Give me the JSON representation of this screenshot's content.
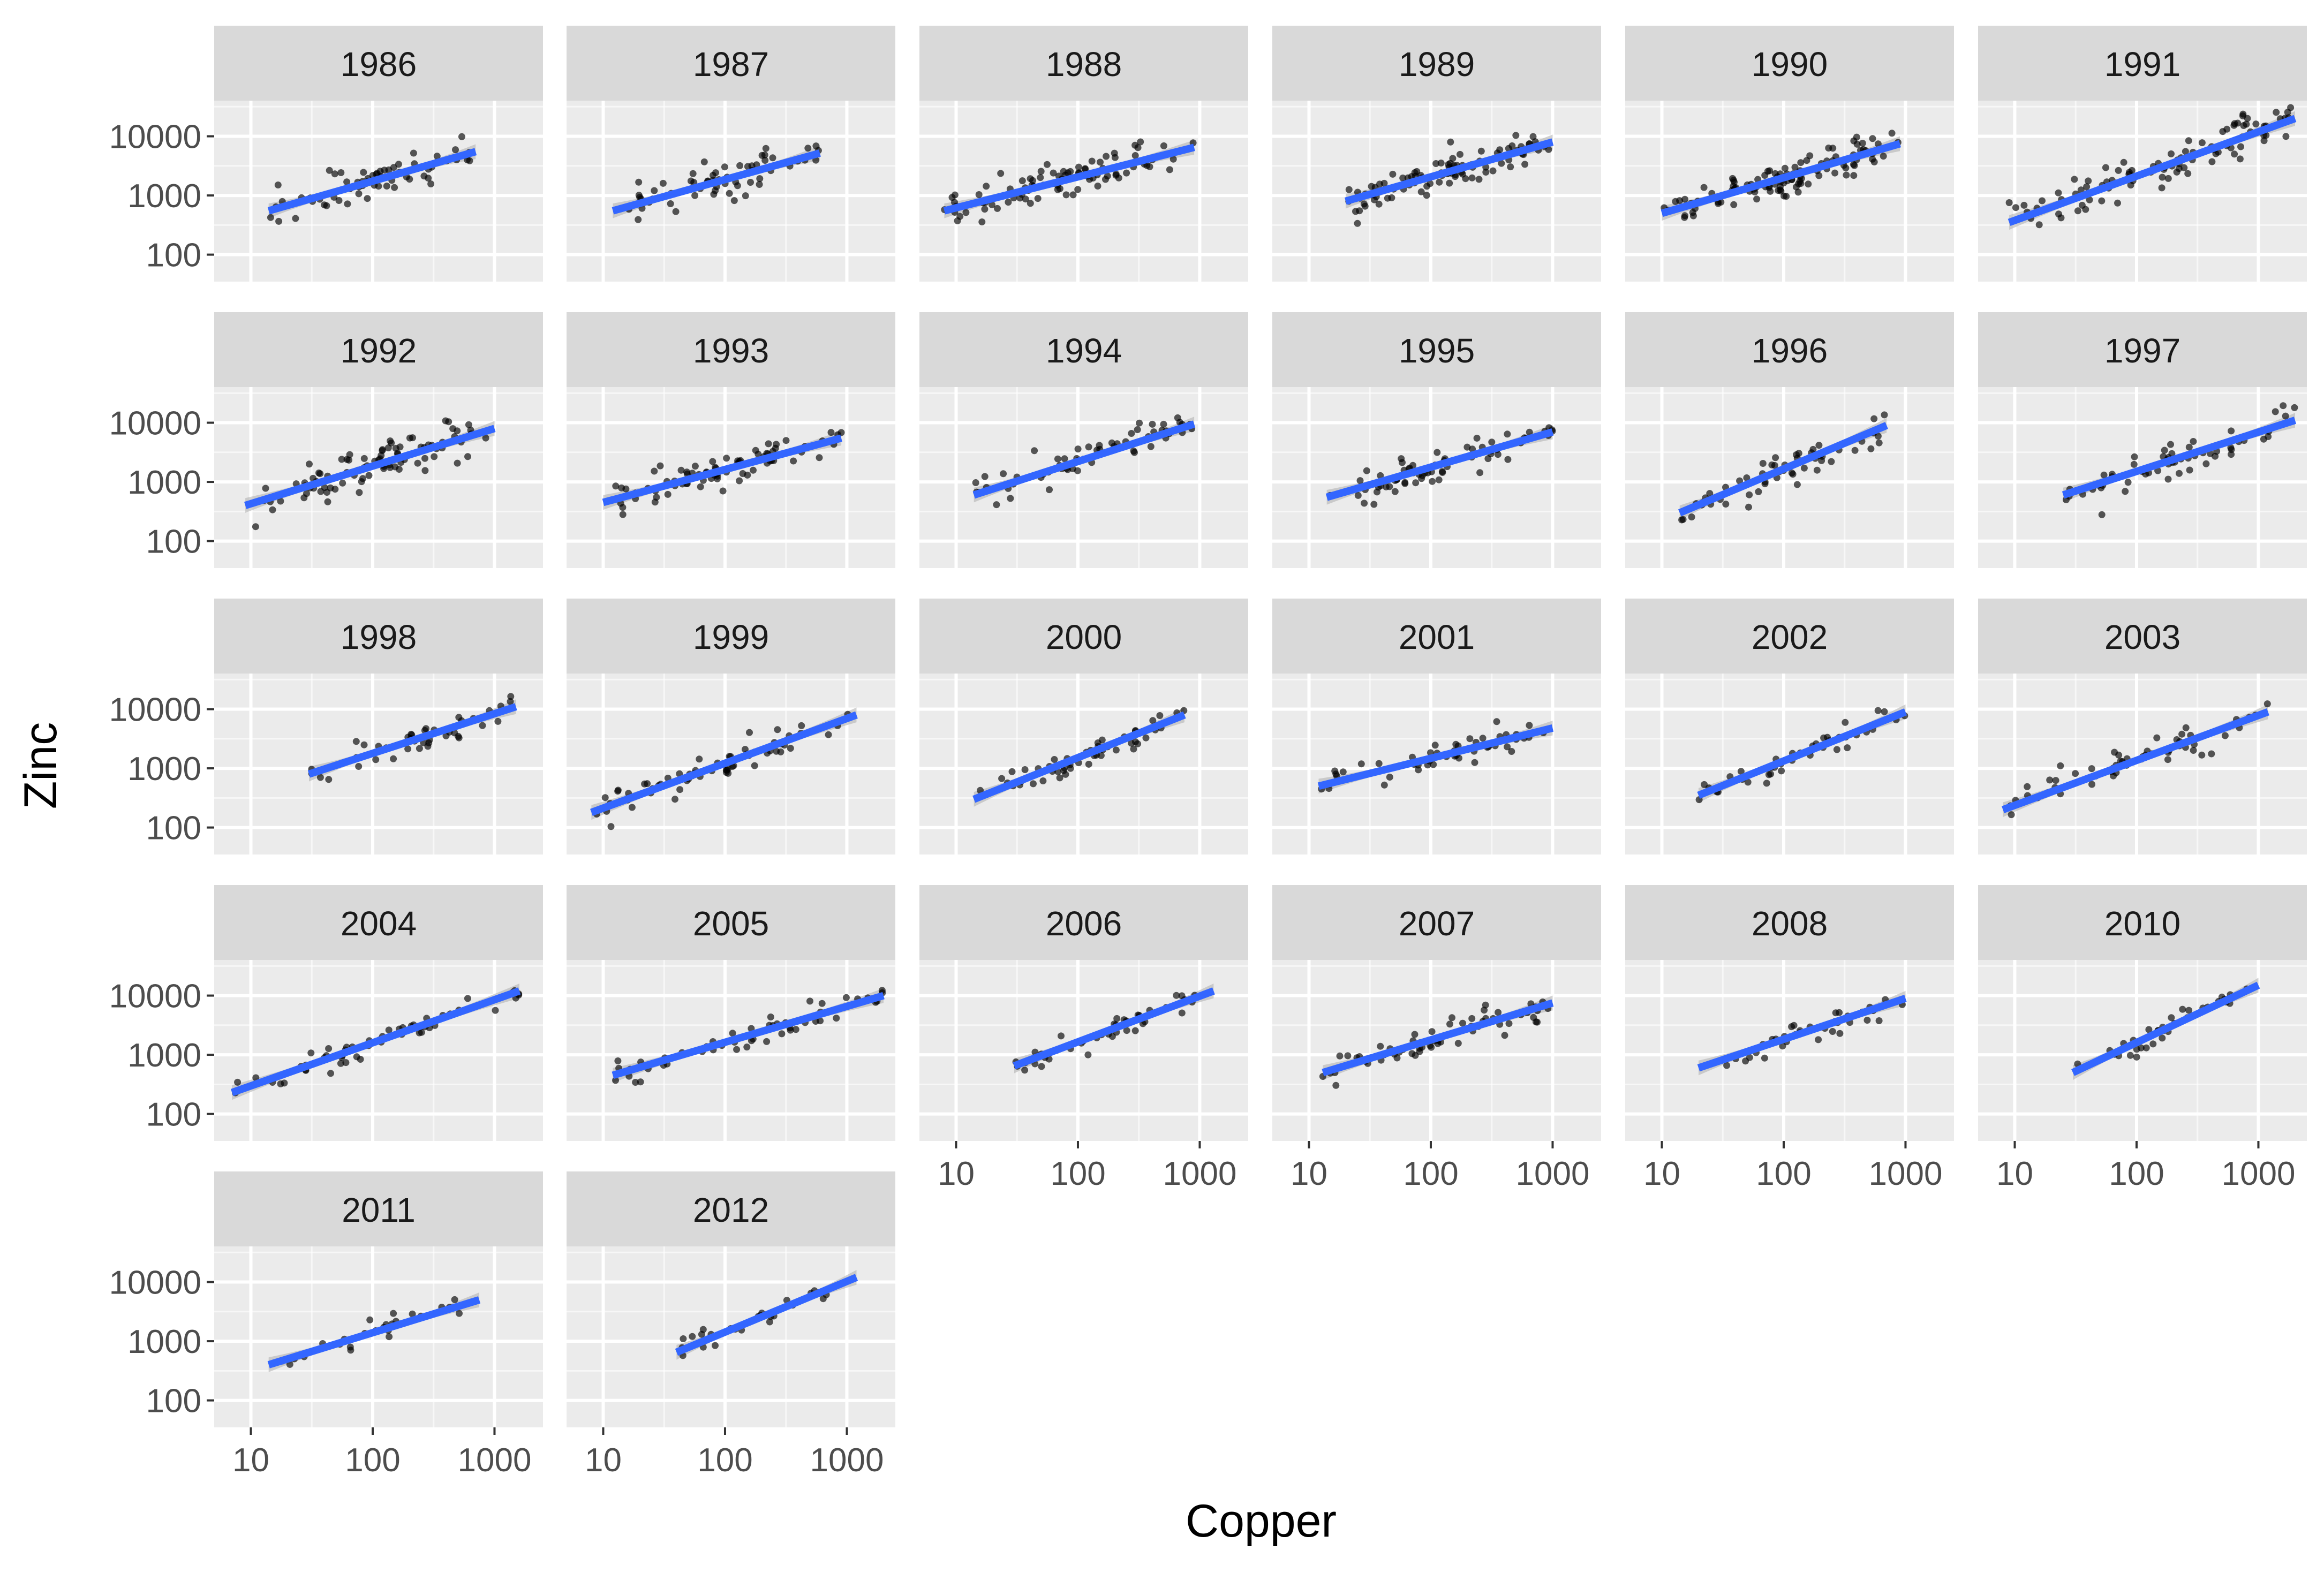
{
  "chart_data": {
    "type": "scatter",
    "facet_style": "small-multiples",
    "xlabel": "Copper",
    "ylabel": "Zinc",
    "x_scale": "log10",
    "y_scale": "log10",
    "xlim": [
      5,
      2500
    ],
    "ylim": [
      35,
      40000
    ],
    "x_ticks": [
      10,
      100,
      1000
    ],
    "x_tick_labels": [
      "10",
      "100",
      "1000"
    ],
    "y_ticks": [
      100,
      1000,
      10000
    ],
    "y_tick_labels": [
      "100",
      "1000",
      "10000"
    ],
    "grid": true,
    "trend_line": "linear fit with confidence band",
    "colors": {
      "panel_bg": "#ebebeb",
      "strip_bg": "#d9d9d9",
      "grid_major": "#ffffff",
      "points": "#000000",
      "fit_line": "#3366ff",
      "fit_band": "#b3b3b3"
    },
    "panels": [
      {
        "year": "1986",
        "xmin": 14,
        "xmax": 700,
        "fit": [
          [
            14,
            550
          ],
          [
            700,
            5500
          ]
        ],
        "n": 70,
        "scatter": 1.9,
        "seed": 1
      },
      {
        "year": "1987",
        "xmin": 12,
        "xmax": 600,
        "fit": [
          [
            12,
            550
          ],
          [
            600,
            5200
          ]
        ],
        "n": 60,
        "scatter": 2.0,
        "seed": 2
      },
      {
        "year": "1988",
        "xmin": 8,
        "xmax": 900,
        "fit": [
          [
            8,
            550
          ],
          [
            900,
            6500
          ]
        ],
        "n": 90,
        "scatter": 1.9,
        "seed": 3
      },
      {
        "year": "1989",
        "xmin": 20,
        "xmax": 1000,
        "fit": [
          [
            20,
            800
          ],
          [
            1000,
            8000
          ]
        ],
        "n": 100,
        "scatter": 1.8,
        "seed": 4
      },
      {
        "year": "1990",
        "xmin": 10,
        "xmax": 900,
        "fit": [
          [
            10,
            500
          ],
          [
            900,
            7500
          ]
        ],
        "n": 110,
        "scatter": 1.9,
        "seed": 5
      },
      {
        "year": "1991",
        "xmin": 9,
        "xmax": 2000,
        "fit": [
          [
            9,
            350
          ],
          [
            2000,
            20000
          ]
        ],
        "n": 95,
        "scatter": 1.9,
        "seed": 6
      },
      {
        "year": "1992",
        "xmin": 9,
        "xmax": 1000,
        "fit": [
          [
            9,
            400
          ],
          [
            1000,
            8000
          ]
        ],
        "n": 90,
        "scatter": 1.9,
        "seed": 7
      },
      {
        "year": "1993",
        "xmin": 10,
        "xmax": 900,
        "fit": [
          [
            10,
            450
          ],
          [
            900,
            5500
          ]
        ],
        "n": 80,
        "scatter": 1.8,
        "seed": 8
      },
      {
        "year": "1994",
        "xmin": 14,
        "xmax": 900,
        "fit": [
          [
            14,
            600
          ],
          [
            900,
            9500
          ]
        ],
        "n": 60,
        "scatter": 1.8,
        "seed": 9
      },
      {
        "year": "1995",
        "xmin": 14,
        "xmax": 1000,
        "fit": [
          [
            14,
            550
          ],
          [
            1000,
            7000
          ]
        ],
        "n": 70,
        "scatter": 1.8,
        "seed": 10
      },
      {
        "year": "1996",
        "xmin": 14,
        "xmax": 700,
        "fit": [
          [
            14,
            300
          ],
          [
            700,
            9000
          ]
        ],
        "n": 55,
        "scatter": 1.8,
        "seed": 11
      },
      {
        "year": "1997",
        "xmin": 25,
        "xmax": 2000,
        "fit": [
          [
            25,
            600
          ],
          [
            2000,
            11000
          ]
        ],
        "n": 60,
        "scatter": 1.8,
        "seed": 12
      },
      {
        "year": "1998",
        "xmin": 30,
        "xmax": 1500,
        "fit": [
          [
            30,
            800
          ],
          [
            1500,
            11000
          ]
        ],
        "n": 40,
        "scatter": 1.6,
        "seed": 13
      },
      {
        "year": "1999",
        "xmin": 8,
        "xmax": 1200,
        "fit": [
          [
            8,
            180
          ],
          [
            1200,
            8000
          ]
        ],
        "n": 60,
        "scatter": 1.7,
        "seed": 14
      },
      {
        "year": "2000",
        "xmin": 14,
        "xmax": 750,
        "fit": [
          [
            14,
            300
          ],
          [
            750,
            8000
          ]
        ],
        "n": 50,
        "scatter": 1.7,
        "seed": 15
      },
      {
        "year": "2001",
        "xmin": 12,
        "xmax": 1000,
        "fit": [
          [
            12,
            500
          ],
          [
            1000,
            4800
          ]
        ],
        "n": 55,
        "scatter": 1.8,
        "seed": 16
      },
      {
        "year": "2002",
        "xmin": 20,
        "xmax": 1000,
        "fit": [
          [
            20,
            350
          ],
          [
            1000,
            9000
          ]
        ],
        "n": 45,
        "scatter": 1.6,
        "seed": 17
      },
      {
        "year": "2003",
        "xmin": 8,
        "xmax": 1200,
        "fit": [
          [
            8,
            200
          ],
          [
            1200,
            9000
          ]
        ],
        "n": 55,
        "scatter": 1.7,
        "seed": 18
      },
      {
        "year": "2004",
        "xmin": 7,
        "xmax": 1600,
        "fit": [
          [
            7,
            230
          ],
          [
            1600,
            12000
          ]
        ],
        "n": 55,
        "scatter": 1.7,
        "seed": 19
      },
      {
        "year": "2005",
        "xmin": 12,
        "xmax": 2000,
        "fit": [
          [
            12,
            450
          ],
          [
            2000,
            10000
          ]
        ],
        "n": 50,
        "scatter": 1.7,
        "seed": 20
      },
      {
        "year": "2006",
        "xmin": 30,
        "xmax": 1300,
        "fit": [
          [
            30,
            650
          ],
          [
            1300,
            12000
          ]
        ],
        "n": 45,
        "scatter": 1.6,
        "seed": 21
      },
      {
        "year": "2007",
        "xmin": 13,
        "xmax": 1000,
        "fit": [
          [
            13,
            500
          ],
          [
            1000,
            7500
          ]
        ],
        "n": 60,
        "scatter": 1.7,
        "seed": 22
      },
      {
        "year": "2008",
        "xmin": 20,
        "xmax": 1000,
        "fit": [
          [
            20,
            600
          ],
          [
            1000,
            9000
          ]
        ],
        "n": 40,
        "scatter": 1.6,
        "seed": 23
      },
      {
        "year": "2010",
        "xmin": 30,
        "xmax": 1000,
        "fit": [
          [
            30,
            500
          ],
          [
            1000,
            15000
          ]
        ],
        "n": 35,
        "scatter": 1.6,
        "seed": 24
      },
      {
        "year": "2011",
        "xmin": 14,
        "xmax": 750,
        "fit": [
          [
            14,
            400
          ],
          [
            750,
            5000
          ]
        ],
        "n": 25,
        "scatter": 1.6,
        "seed": 25
      },
      {
        "year": "2012",
        "xmin": 40,
        "xmax": 1200,
        "fit": [
          [
            40,
            650
          ],
          [
            1200,
            12000
          ]
        ],
        "n": 25,
        "scatter": 1.6,
        "seed": 26
      }
    ]
  }
}
